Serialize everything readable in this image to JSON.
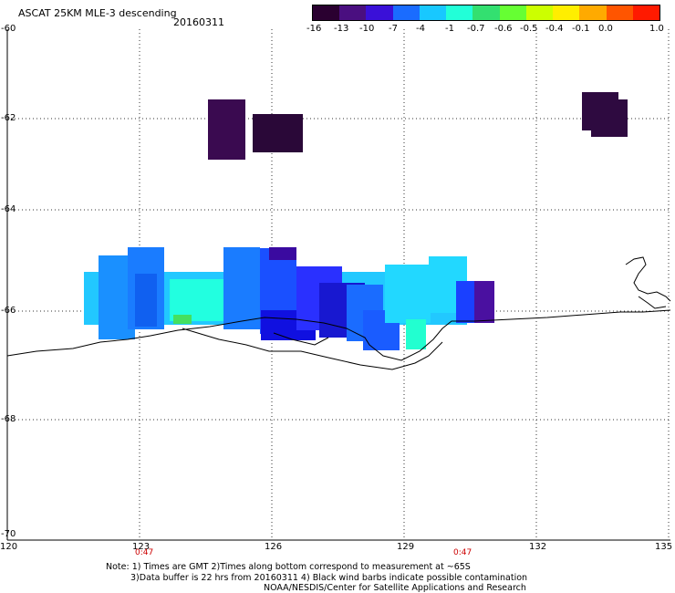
{
  "header": {
    "title": "ASCAT 25KM MLE-3 descending",
    "date": "20160311"
  },
  "colorbar": {
    "colors": [
      "#2a0030",
      "#4a0f80",
      "#3a10d8",
      "#1a6cff",
      "#18c8ff",
      "#22ffd8",
      "#33e070",
      "#66ff33",
      "#ccff00",
      "#ffee00",
      "#ffaa00",
      "#ff5500",
      "#ff1a00"
    ],
    "labels": [
      "-16",
      "-13",
      "-10",
      "-7",
      "-4",
      "-1",
      "-0.7",
      "-0.6",
      "-0.5",
      "-0.4",
      "-0.1",
      "0.0",
      "1.0"
    ]
  },
  "axes": {
    "lat_labels": [
      "-60",
      "-62",
      "-64",
      "-66",
      "-68",
      "-70"
    ],
    "lon_labels": [
      "120",
      "123",
      "126",
      "129",
      "132",
      "135"
    ]
  },
  "times": [
    "0:47",
    "0:47"
  ],
  "notes": {
    "line1": "Note: 1) Times are GMT 2)Times along bottom correspond to measurement at ~65S",
    "line2": "3)Data buffer is 22 hrs from 20160311 4) Black wind barbs indicate possible contamination",
    "line3": "NOAA/NESDIS/Center for Satellite Applications and Research"
  }
}
